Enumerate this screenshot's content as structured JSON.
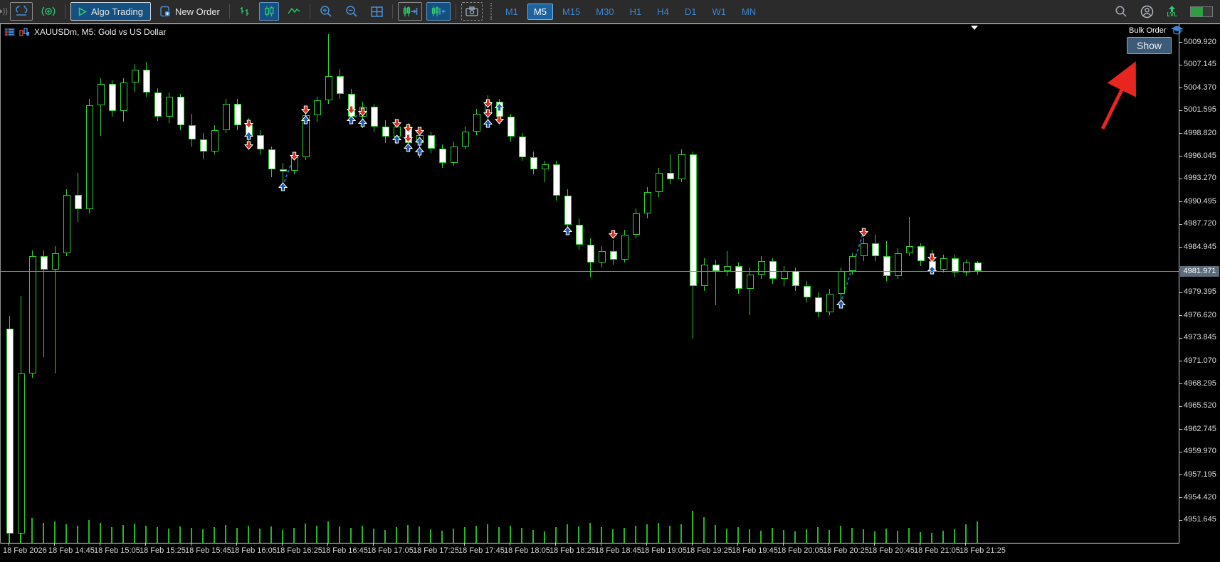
{
  "toolbar": {
    "algo_trading_label": "Algo Trading",
    "new_order_label": "New Order",
    "timeframes": [
      {
        "label": "M1",
        "active": false
      },
      {
        "label": "M5",
        "active": true
      },
      {
        "label": "M15",
        "active": false
      },
      {
        "label": "M30",
        "active": false
      },
      {
        "label": "H1",
        "active": false
      },
      {
        "label": "H4",
        "active": false
      },
      {
        "label": "D1",
        "active": false
      },
      {
        "label": "W1",
        "active": false
      },
      {
        "label": "MN",
        "active": false
      }
    ],
    "lvl_label": "LVL"
  },
  "chart": {
    "title": "XAUUSDm, M5:  Gold vs US Dollar",
    "bulk_order_label": "Bulk Order",
    "show_button_label": "Show",
    "current_price_label": "4981.971"
  },
  "colors": {
    "candle_outline": "#30d030",
    "bull_fill": "#000000",
    "bear_fill": "#ffffff",
    "volume": "#25b825",
    "buy_marker": "#1f5cad",
    "sell_marker": "#d93025",
    "trade_line": "#2266aa",
    "current_price_line": "#8092a4",
    "annotation_arrow": "#e8251f",
    "accent_blue": "#3d86d2",
    "accent_green": "#2ecc71"
  },
  "chart_data": {
    "type": "candlestick",
    "symbol": "XAUUSDm",
    "timeframe": "M5",
    "description": "Gold vs US Dollar",
    "start_time": "18 Feb 2026 14:25",
    "interval_minutes": 5,
    "current_price": 4981.971,
    "price_step": 2.775,
    "ylim": [
      4944.0,
      5011.5
    ],
    "y_axis_labels": [
      "5009.920",
      "5007.145",
      "5004.370",
      "5001.595",
      "4998.820",
      "4996.045",
      "4993.270",
      "4990.495",
      "4987.720",
      "4984.945",
      "4982.170",
      "4979.395",
      "4976.620",
      "4973.845",
      "4971.070",
      "4968.295",
      "4965.520",
      "4962.745",
      "4959.970",
      "4957.195",
      "4954.420",
      "4951.645"
    ],
    "x_axis_labels": [
      {
        "bar": 0,
        "label": "18 Feb 2026"
      },
      {
        "bar": 4,
        "label": "18 Feb 14:45"
      },
      {
        "bar": 8,
        "label": "18 Feb 15:05"
      },
      {
        "bar": 12,
        "label": "18 Feb 15:25"
      },
      {
        "bar": 16,
        "label": "18 Feb 15:45"
      },
      {
        "bar": 20,
        "label": "18 Feb 16:05"
      },
      {
        "bar": 24,
        "label": "18 Feb 16:25"
      },
      {
        "bar": 28,
        "label": "18 Feb 16:45"
      },
      {
        "bar": 32,
        "label": "18 Feb 17:05"
      },
      {
        "bar": 36,
        "label": "18 Feb 17:25"
      },
      {
        "bar": 40,
        "label": "18 Feb 17:45"
      },
      {
        "bar": 44,
        "label": "18 Feb 18:05"
      },
      {
        "bar": 48,
        "label": "18 Feb 18:25"
      },
      {
        "bar": 52,
        "label": "18 Feb 18:45"
      },
      {
        "bar": 56,
        "label": "18 Feb 19:05"
      },
      {
        "bar": 60,
        "label": "18 Feb 19:25"
      },
      {
        "bar": 64,
        "label": "18 Feb 19:45"
      },
      {
        "bar": 68,
        "label": "18 Feb 20:05"
      },
      {
        "bar": 72,
        "label": "18 Feb 20:25"
      },
      {
        "bar": 76,
        "label": "18 Feb 20:45"
      },
      {
        "bar": 80,
        "label": "18 Feb 21:05"
      },
      {
        "bar": 84,
        "label": "18 Feb 21:25"
      }
    ],
    "candles": [
      [
        4975.0,
        4976.5,
        4944.0,
        4950.0
      ],
      [
        4950.0,
        4979.0,
        4943.5,
        4969.5
      ],
      [
        4969.5,
        4984.5,
        4969.0,
        4983.8
      ],
      [
        4983.8,
        4984.5,
        4971.5,
        4982.2
      ],
      [
        4982.2,
        4985.0,
        4969.5,
        4984.2
      ],
      [
        4984.2,
        4992.0,
        4983.8,
        4991.3
      ],
      [
        4991.3,
        4994.0,
        4988.0,
        4989.5
      ],
      [
        4989.5,
        5003.0,
        4989.0,
        5002.2
      ],
      [
        5002.2,
        5005.5,
        4998.5,
        5004.8
      ],
      [
        5004.8,
        5005.2,
        5000.8,
        5001.5
      ],
      [
        5001.5,
        5005.5,
        5000.2,
        5005.0
      ],
      [
        5005.0,
        5007.2,
        5003.8,
        5006.5
      ],
      [
        5006.5,
        5007.5,
        5003.2,
        5003.8
      ],
      [
        5003.8,
        5004.3,
        5000.3,
        5000.8
      ],
      [
        5000.8,
        5003.8,
        5000.0,
        5003.2
      ],
      [
        5003.2,
        5003.6,
        4999.2,
        4999.8
      ],
      [
        4999.8,
        5001.2,
        4997.2,
        4998.0
      ],
      [
        4998.0,
        4998.8,
        4995.6,
        4996.6
      ],
      [
        4996.6,
        4999.8,
        4996.2,
        4999.2
      ],
      [
        4999.2,
        5003.0,
        4998.8,
        5002.4
      ],
      [
        5002.4,
        5003.0,
        4999.2,
        4999.8
      ],
      [
        4999.8,
        5000.6,
        4997.6,
        4998.6
      ],
      [
        4998.6,
        4999.2,
        4996.2,
        4996.8
      ],
      [
        4996.8,
        4997.2,
        4993.4,
        4994.4
      ],
      [
        4994.4,
        4995.2,
        4992.3,
        4994.2
      ],
      [
        4994.2,
        4996.4,
        4993.8,
        4995.9
      ],
      [
        4995.9,
        5001.6,
        4995.5,
        5001.0
      ],
      [
        5001.0,
        5003.2,
        5000.2,
        5002.8
      ],
      [
        5002.8,
        5010.9,
        5002.4,
        5005.8
      ],
      [
        5005.8,
        5006.6,
        5003.0,
        5003.6
      ],
      [
        5003.6,
        5004.2,
        5000.0,
        5000.8
      ],
      [
        5000.8,
        5002.6,
        4999.4,
        5002.0
      ],
      [
        5002.0,
        5002.4,
        4999.0,
        4999.6
      ],
      [
        4999.6,
        5000.4,
        4997.6,
        4998.4
      ],
      [
        4998.4,
        5000.2,
        4997.4,
        4999.6
      ],
      [
        4999.6,
        5000.0,
        4997.0,
        4997.6
      ],
      [
        4997.6,
        4999.2,
        4995.8,
        4998.6
      ],
      [
        4998.6,
        4999.0,
        4996.4,
        4996.9
      ],
      [
        4996.9,
        4997.4,
        4994.6,
        4995.2
      ],
      [
        4995.2,
        4997.8,
        4994.8,
        4997.2
      ],
      [
        4997.2,
        4999.6,
        4996.8,
        4999.0
      ],
      [
        4999.0,
        5001.8,
        4998.6,
        5001.2
      ],
      [
        5001.2,
        5003.4,
        5000.4,
        5002.6
      ],
      [
        5002.6,
        5003.0,
        5000.2,
        5000.8
      ],
      [
        5000.8,
        5001.2,
        4997.8,
        4998.4
      ],
      [
        4998.4,
        4998.8,
        4995.4,
        4995.9
      ],
      [
        4995.9,
        4996.6,
        4993.8,
        4994.4
      ],
      [
        4994.4,
        4995.4,
        4992.8,
        4995.0
      ],
      [
        4995.0,
        4995.4,
        4990.6,
        4991.2
      ],
      [
        4991.2,
        4992.0,
        4986.9,
        4987.6
      ],
      [
        4987.6,
        4988.4,
        4984.6,
        4985.2
      ],
      [
        4985.2,
        4986.0,
        4981.2,
        4983.0
      ],
      [
        4983.0,
        4985.0,
        4982.4,
        4984.4
      ],
      [
        4984.4,
        4985.8,
        4982.8,
        4983.4
      ],
      [
        4983.4,
        4987.0,
        4983.0,
        4986.4
      ],
      [
        4986.4,
        4989.6,
        4986.0,
        4989.0
      ],
      [
        4989.0,
        4992.2,
        4988.4,
        4991.6
      ],
      [
        4991.6,
        4994.6,
        4991.0,
        4994.0
      ],
      [
        4994.0,
        4996.2,
        4992.6,
        4993.2
      ],
      [
        4993.2,
        4996.8,
        4992.8,
        4996.2
      ],
      [
        4996.2,
        4996.6,
        4973.8,
        4980.2
      ],
      [
        4980.2,
        4983.6,
        4979.6,
        4982.8
      ],
      [
        4982.8,
        4983.4,
        4977.8,
        4982.0
      ],
      [
        4982.0,
        4984.4,
        4981.4,
        4982.6
      ],
      [
        4982.6,
        4983.0,
        4979.2,
        4979.8
      ],
      [
        4979.8,
        4982.4,
        4976.6,
        4981.6
      ],
      [
        4981.6,
        4983.8,
        4981.0,
        4983.2
      ],
      [
        4983.2,
        4983.6,
        4980.4,
        4981.0
      ],
      [
        4981.0,
        4982.6,
        4980.2,
        4982.0
      ],
      [
        4982.0,
        4982.4,
        4979.6,
        4980.2
      ],
      [
        4980.2,
        4980.8,
        4978.2,
        4978.8
      ],
      [
        4978.8,
        4979.4,
        4976.4,
        4977.0
      ],
      [
        4977.0,
        4979.8,
        4976.6,
        4979.2
      ],
      [
        4979.2,
        4982.4,
        4978.2,
        4982.0
      ],
      [
        4982.0,
        4984.2,
        4981.6,
        4983.8
      ],
      [
        4983.8,
        4986.0,
        4983.2,
        4985.4
      ],
      [
        4985.4,
        4986.4,
        4983.2,
        4983.8
      ],
      [
        4983.8,
        4985.6,
        4980.8,
        4981.4
      ],
      [
        4981.4,
        4984.8,
        4981.0,
        4984.2
      ],
      [
        4984.2,
        4988.6,
        4983.8,
        4985.0
      ],
      [
        4985.0,
        4985.4,
        4982.6,
        4983.2
      ],
      [
        4983.2,
        4984.6,
        4981.6,
        4982.2
      ],
      [
        4982.2,
        4984.0,
        4981.8,
        4983.6
      ],
      [
        4983.6,
        4984.0,
        4981.2,
        4981.8
      ],
      [
        4981.8,
        4983.4,
        4981.4,
        4983.0
      ],
      [
        4983.0,
        4983.2,
        4981.6,
        4982.0
      ]
    ],
    "volumes": [
      38,
      42,
      35,
      28,
      30,
      26,
      24,
      32,
      28,
      22,
      25,
      27,
      24,
      22,
      20,
      23,
      21,
      19,
      22,
      25,
      21,
      24,
      20,
      23,
      18,
      21,
      27,
      24,
      30,
      23,
      21,
      24,
      20,
      18,
      22,
      25,
      23,
      19,
      17,
      20,
      22,
      24,
      26,
      22,
      24,
      21,
      18,
      16,
      22,
      26,
      23,
      28,
      22,
      19,
      21,
      24,
      26,
      28,
      24,
      26,
      45,
      36,
      25,
      20,
      22,
      19,
      17,
      21,
      18,
      16,
      19,
      22,
      18,
      24,
      21,
      19,
      16,
      20,
      17,
      21,
      15,
      14,
      17,
      19,
      26,
      30
    ],
    "markers": [
      {
        "bar": 21,
        "price": 4999.9,
        "type": "sell"
      },
      {
        "bar": 21,
        "price": 4998.5,
        "type": "buy"
      },
      {
        "bar": 21,
        "price": 4997.3,
        "type": "sell"
      },
      {
        "bar": 24,
        "price": 4992.3,
        "type": "buy"
      },
      {
        "bar": 25,
        "price": 4996.0,
        "type": "sell"
      },
      {
        "bar": 26,
        "price": 5001.6,
        "type": "sell"
      },
      {
        "bar": 26,
        "price": 5000.4,
        "type": "buy"
      },
      {
        "bar": 30,
        "price": 5001.6,
        "type": "sell"
      },
      {
        "bar": 30,
        "price": 5000.4,
        "type": "buy"
      },
      {
        "bar": 31,
        "price": 5001.4,
        "type": "sell"
      },
      {
        "bar": 31,
        "price": 5000.1,
        "type": "buy"
      },
      {
        "bar": 34,
        "price": 5000.0,
        "type": "sell"
      },
      {
        "bar": 34,
        "price": 4998.1,
        "type": "buy"
      },
      {
        "bar": 35,
        "price": 4999.4,
        "type": "sell"
      },
      {
        "bar": 35,
        "price": 4998.2,
        "type": "sell"
      },
      {
        "bar": 35,
        "price": 4997.0,
        "type": "buy"
      },
      {
        "bar": 36,
        "price": 4999.0,
        "type": "sell"
      },
      {
        "bar": 36,
        "price": 4997.8,
        "type": "buy"
      },
      {
        "bar": 36,
        "price": 4996.6,
        "type": "buy"
      },
      {
        "bar": 42,
        "price": 5002.4,
        "type": "sell"
      },
      {
        "bar": 42,
        "price": 5001.2,
        "type": "sell"
      },
      {
        "bar": 42,
        "price": 5000.0,
        "type": "buy"
      },
      {
        "bar": 43,
        "price": 5002.0,
        "type": "buy"
      },
      {
        "bar": 43,
        "price": 5000.4,
        "type": "sell"
      },
      {
        "bar": 49,
        "price": 4986.9,
        "type": "buy"
      },
      {
        "bar": 53,
        "price": 4986.5,
        "type": "sell"
      },
      {
        "bar": 73,
        "price": 4978.0,
        "type": "buy"
      },
      {
        "bar": 75,
        "price": 4986.7,
        "type": "sell"
      },
      {
        "bar": 81,
        "price": 4983.6,
        "type": "sell"
      },
      {
        "bar": 81,
        "price": 4982.1,
        "type": "buy"
      }
    ],
    "trade_lines": [
      [
        24,
        4992.3,
        25,
        4996.0
      ],
      [
        30,
        5000.4,
        31,
        5001.4
      ],
      [
        73,
        4978.0,
        75,
        4986.7
      ]
    ]
  }
}
